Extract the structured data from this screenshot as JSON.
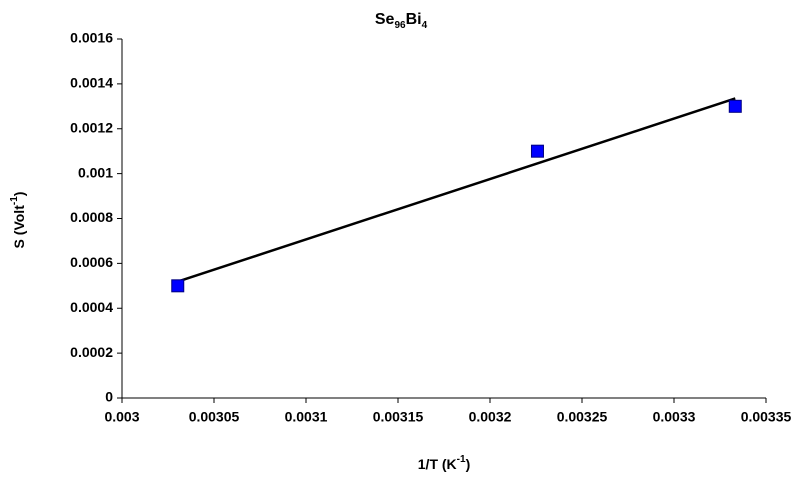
{
  "chart_data": {
    "type": "scatter",
    "title": [
      {
        "text": "Se"
      },
      {
        "text": "96",
        "script": "sub"
      },
      {
        "text": "Bi"
      },
      {
        "text": "4",
        "script": "sub"
      }
    ],
    "x_label": [
      {
        "text": "1/T (K"
      },
      {
        "text": "-1",
        "script": "super"
      },
      {
        "text": ")"
      }
    ],
    "y_label": [
      {
        "text": "S (Volt"
      },
      {
        "text": "-1",
        "script": "super"
      },
      {
        "text": ")"
      }
    ],
    "series": [
      {
        "color": "#0000ff",
        "x": [
          0.0030303,
          0.0032258,
          0.0033333
        ],
        "values": [
          0.0005,
          0.0011,
          0.0013
        ]
      }
    ],
    "trendline": {
      "color": "#000000",
      "x": [
        0.0030303,
        0.0033333
      ],
      "values": [
        0.000519,
        0.001335
      ]
    },
    "xlim": [
      0.003,
      0.00335
    ],
    "xticks": [
      0.003,
      0.00305,
      0.0031,
      0.00315,
      0.0032,
      0.00325,
      0.0033,
      0.00335
    ],
    "ylim": [
      0,
      0.0016
    ],
    "yticks": [
      0,
      0.0002,
      0.0004,
      0.0006,
      0.0008,
      0.001,
      0.0012,
      0.0014,
      0.0016
    ],
    "grid": false
  }
}
